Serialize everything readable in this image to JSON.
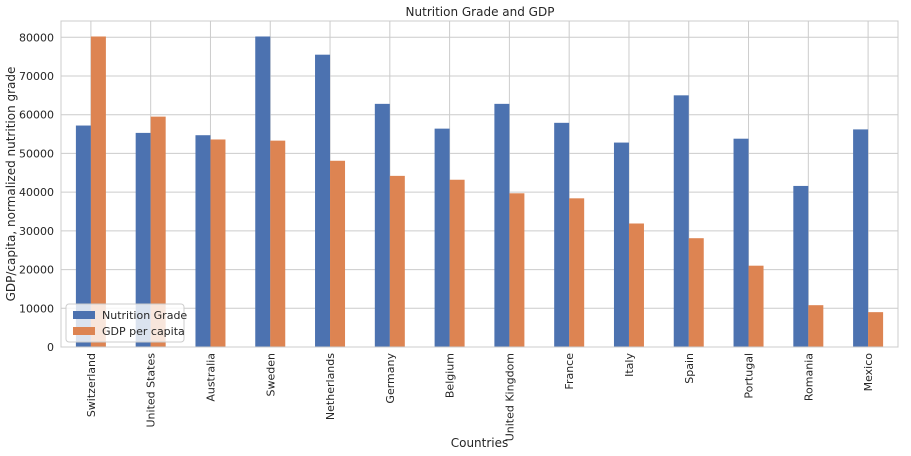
{
  "chart_data": {
    "type": "bar",
    "title": "Nutrition Grade and GDP",
    "xlabel": "Countries",
    "ylabel": "GDP/capita, normalized nutrition grade",
    "categories": [
      "Switzerland",
      "United States",
      "Australia",
      "Sweden",
      "Netherlands",
      "Germany",
      "Belgium",
      "United Kingdom",
      "France",
      "Italy",
      "Spain",
      "Portugal",
      "Romania",
      "Mexico"
    ],
    "series": [
      {
        "name": "Nutrition Grade",
        "color": "#4c72b0",
        "values": [
          57200,
          55300,
          54700,
          80200,
          75500,
          62800,
          56400,
          62800,
          57900,
          52800,
          65000,
          53800,
          41600,
          56200
        ]
      },
      {
        "name": "GDP per capita",
        "color": "#dd8452",
        "values": [
          80200,
          59500,
          53600,
          53300,
          48100,
          44200,
          43200,
          39700,
          38400,
          31900,
          28100,
          21000,
          10800,
          9000
        ]
      }
    ],
    "ylim": [
      0,
      84200
    ],
    "yticks": [
      0,
      10000,
      20000,
      30000,
      40000,
      50000,
      60000,
      70000,
      80000
    ],
    "ytick_labels": [
      "0",
      "10000",
      "20000",
      "30000",
      "40000",
      "50000",
      "60000",
      "70000",
      "80000"
    ],
    "grid": true,
    "legend_position": "lower-left"
  }
}
